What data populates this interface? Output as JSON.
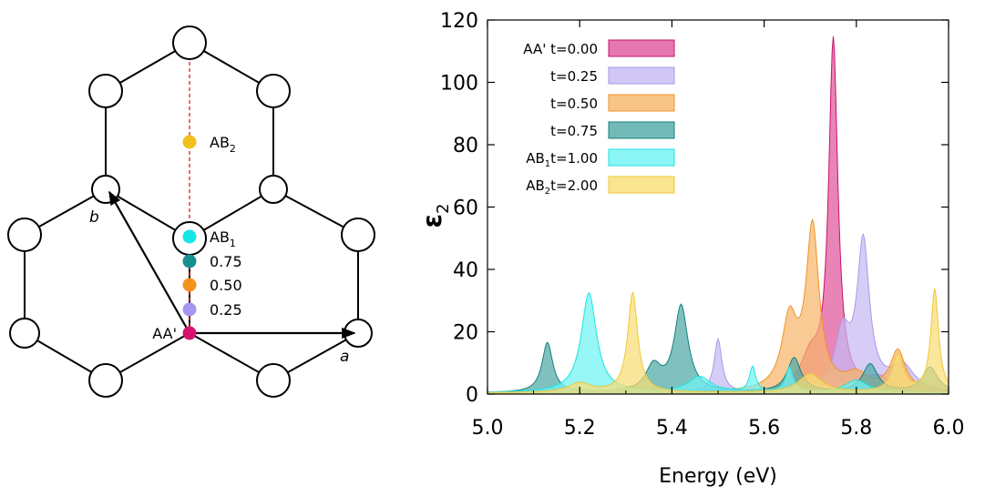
{
  "lattice": {
    "markers": [
      {
        "label": "AB",
        "sub": "2",
        "color": "#f2c01c"
      },
      {
        "label": "AB",
        "sub": "1",
        "color": "#17e6e6"
      },
      {
        "label": "0.75",
        "sub": "",
        "color": "#178f8f"
      },
      {
        "label": "0.50",
        "sub": "",
        "color": "#f5921e"
      },
      {
        "label": "0.25",
        "sub": "",
        "color": "#a595f0"
      },
      {
        "label": "AA'",
        "sub": "",
        "color": "#d4146e"
      }
    ],
    "vector_a_label": "a",
    "vector_b_label": "b",
    "dashed_line_color": "#e02020"
  },
  "chart_data": {
    "type": "area",
    "xlabel": "Energy (eV)",
    "ylabel": "ε",
    "ylabel_sub": "2",
    "xlim": [
      5.0,
      6.0
    ],
    "ylim": [
      0,
      120
    ],
    "xticks": [
      "5.0",
      "5.2",
      "5.4",
      "5.6",
      "5.8",
      "6.0"
    ],
    "yticks": [
      "0",
      "20",
      "40",
      "60",
      "80",
      "100",
      "120"
    ],
    "legend_position": "top-left",
    "series": [
      {
        "legend_prefix": "AA'",
        "legend_sub": "",
        "name": "t=0.00",
        "fill": "#e0559a",
        "stroke": "#c8106a",
        "peaks": [
          [
            5.75,
            112,
            0.012
          ],
          [
            5.7,
            10,
            0.025
          ],
          [
            5.85,
            4,
            0.03
          ]
        ],
        "base": 0.4
      },
      {
        "legend_prefix": "",
        "legend_sub": "",
        "name": "t=0.25",
        "fill": "#c6b9f2",
        "stroke": "#a898e8",
        "peaks": [
          [
            5.815,
            47,
            0.016
          ],
          [
            5.5,
            17,
            0.01
          ],
          [
            5.77,
            18,
            0.02
          ],
          [
            5.9,
            8,
            0.03
          ]
        ],
        "base": 0.4
      },
      {
        "legend_prefix": "",
        "legend_sub": "",
        "name": "t=0.50",
        "fill": "#f6b669",
        "stroke": "#ef9428",
        "peaks": [
          [
            5.705,
            52,
            0.017
          ],
          [
            5.655,
            22,
            0.02
          ],
          [
            5.31,
            2,
            0.02
          ],
          [
            5.89,
            13,
            0.02
          ],
          [
            5.8,
            5,
            0.03
          ]
        ],
        "base": 0.4
      },
      {
        "legend_prefix": "",
        "legend_sub": "",
        "name": "t=0.75",
        "fill": "#4fa9a6",
        "stroke": "#13807c",
        "peaks": [
          [
            5.42,
            27.5,
            0.018
          ],
          [
            5.13,
            16,
            0.014
          ],
          [
            5.36,
            8,
            0.02
          ],
          [
            5.665,
            11,
            0.018
          ],
          [
            5.83,
            9,
            0.02
          ],
          [
            5.96,
            8,
            0.02
          ]
        ],
        "base": 0.4
      },
      {
        "legend_prefix": "AB",
        "legend_sub": "1",
        "name": "t=1.00",
        "fill": "#6ff3f3",
        "stroke": "#1ee4e4",
        "peaks": [
          [
            5.22,
            32,
            0.02
          ],
          [
            5.575,
            8,
            0.008
          ],
          [
            5.655,
            8,
            0.01
          ],
          [
            5.46,
            5,
            0.03
          ],
          [
            5.8,
            4,
            0.03
          ]
        ],
        "base": 0.4
      },
      {
        "legend_prefix": "AB",
        "legend_sub": "2",
        "name": "t=2.00",
        "fill": "#f8de76",
        "stroke": "#efc838",
        "peaks": [
          [
            5.315,
            32,
            0.013
          ],
          [
            5.97,
            33,
            0.01
          ],
          [
            5.89,
            12,
            0.015
          ],
          [
            5.7,
            6,
            0.03
          ],
          [
            5.2,
            3,
            0.03
          ]
        ],
        "base": 0.4
      }
    ]
  }
}
